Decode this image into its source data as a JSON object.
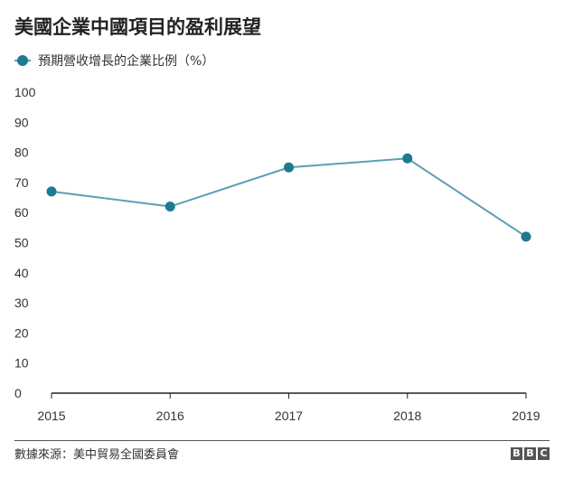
{
  "chart_data": {
    "type": "line",
    "title": "美國企業中國項目的盈利展望",
    "xlabel": "",
    "ylabel": "",
    "categories": [
      "2015",
      "2016",
      "2017",
      "2018",
      "2019"
    ],
    "series": [
      {
        "name": "預期營收增長的企業比例（%）",
        "values": [
          67,
          62,
          75,
          78,
          52
        ],
        "color": "#5b9fb4",
        "marker_color": "#1c7a93"
      }
    ],
    "ylim": [
      0,
      100
    ],
    "yticks": [
      "0",
      "10",
      "20",
      "30",
      "40",
      "50",
      "60",
      "70",
      "80",
      "90",
      "100"
    ],
    "grid": false,
    "legend_position": "top-left"
  },
  "footer": {
    "source": "數據來源：美中貿易全國委員會",
    "logo": [
      "B",
      "B",
      "C"
    ]
  }
}
